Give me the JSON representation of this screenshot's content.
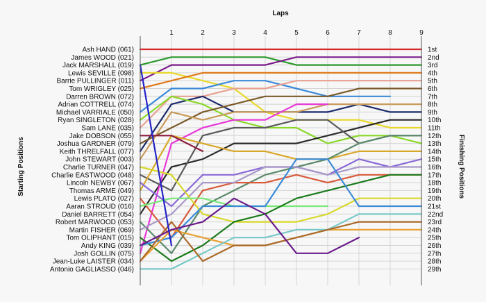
{
  "chart_data": {
    "type": "line",
    "title": "",
    "xlabel": "Laps",
    "ylabel_left": "Starting Positions",
    "ylabel_right": "Finishing Positions",
    "x": [
      0,
      1,
      2,
      3,
      4,
      5,
      6,
      7,
      8,
      9
    ],
    "x_tick_labels": [
      "1",
      "2",
      "3",
      "4",
      "5",
      "6",
      "7",
      "8",
      "9"
    ],
    "ylim": [
      1,
      29
    ],
    "y_direction": "inverted",
    "grid": true,
    "starting_labels": [
      "Ash HAND (061)",
      "James WOOD (021)",
      "Jack MARSHALL (019)",
      "Lewis SEVILLE (098)",
      "Barrie PULLINGER (011)",
      "Tom WRIGLEY (025)",
      "Darren BROWN (072)",
      "Adrian COTTRELL (074)",
      "Michael VARRIALE (050)",
      "Ryan SINGLETON (028)",
      "Sam LANE (035)",
      "Jake DOBSON (055)",
      "Joshua GARDNER (079)",
      "Keith THRELFALL (077)",
      "John STEWART (003)",
      "Charlie TURNER (047)",
      "Charlie EASTWOOD (048)",
      "Lincoln NEWBY (067)",
      "Thomas ARME (049)",
      "Lewis PLATO (027)",
      "Aaran STROUD (016)",
      "Daniel BARRETT (054)",
      "Robert MARWOOD (053)",
      "Martin FISHER (069)",
      "Tom OLIPHANT (015)",
      "Andy KING (039)",
      "Josh GOLLIN (075)",
      "Jean-Luke LAISTER (034)",
      "Antonio GAGLIASSO (046)"
    ],
    "finishing_labels": [
      "1st",
      "2nd",
      "3rd",
      "4th",
      "5th",
      "6th",
      "7th",
      "8th",
      "9th",
      "10th",
      "11th",
      "12th",
      "13th",
      "14th",
      "15th",
      "16th",
      "17th",
      "18th",
      "19th",
      "20th",
      "21st",
      "22nd",
      "23rd",
      "24th",
      "25th",
      "26th",
      "27th",
      "28th",
      "29th"
    ],
    "series": [
      {
        "color": "#d42a2a",
        "values": [
          1,
          1,
          1,
          1,
          1,
          1,
          1,
          1,
          1,
          1
        ]
      },
      {
        "color": "#2a9a2a",
        "values": [
          3,
          2,
          2,
          2,
          2,
          3,
          3,
          3,
          3,
          3
        ]
      },
      {
        "color": "#7a1a8a",
        "values": [
          5,
          3,
          3,
          3,
          3,
          2,
          2,
          2,
          2,
          2
        ]
      },
      {
        "color": "#e8d82a",
        "values": [
          4,
          4,
          5,
          6,
          9,
          10,
          10,
          10,
          11,
          11
        ]
      },
      {
        "color": "#e07a1a",
        "values": [
          6,
          5,
          4,
          4,
          4,
          4,
          4,
          4,
          4,
          4
        ]
      },
      {
        "color": "#3a8ad8",
        "values": [
          9,
          6,
          6,
          5,
          5,
          6,
          7,
          7,
          7,
          null
        ]
      },
      {
        "color": "#e8a090",
        "values": [
          11,
          7,
          7,
          6,
          6,
          5,
          5,
          5,
          5,
          5
        ]
      },
      {
        "color": "#1a2a6a",
        "values": [
          14,
          8,
          7,
          9,
          9,
          9,
          9,
          8,
          9,
          9
        ]
      },
      {
        "color": "#8ad82a",
        "values": [
          10,
          7,
          8,
          10,
          11,
          11,
          13,
          12,
          12,
          13
        ]
      },
      {
        "color": "#7a5a2a",
        "values": [
          13,
          11,
          9,
          8,
          7,
          7,
          7,
          6,
          6,
          6
        ]
      },
      {
        "color": "#c89a5a",
        "values": [
          15,
          9,
          10,
          9,
          9,
          9,
          8,
          8,
          8,
          8
        ]
      },
      {
        "color": "#2a2a2a",
        "values": [
          22,
          16,
          15,
          13,
          13,
          13,
          12,
          11,
          10,
          10
        ]
      },
      {
        "color": "#e838d8",
        "values": [
          27,
          13,
          11,
          10,
          10,
          8,
          8,
          null,
          null,
          null
        ]
      },
      {
        "color": "#5a5a5a",
        "values": [
          17,
          19,
          12,
          11,
          11,
          10,
          10,
          13,
          12,
          12
        ]
      },
      {
        "color": "#d8a82a",
        "values": [
          19,
          12,
          13,
          14,
          14,
          15,
          15,
          14,
          14,
          14
        ]
      },
      {
        "color": "#8a6ad8",
        "values": [
          18,
          21,
          17,
          17,
          16,
          16,
          17,
          15,
          16,
          15
        ]
      },
      {
        "color": "#5a8a6a",
        "values": [
          23,
          27,
          21,
          19,
          17,
          16,
          15,
          13,
          12,
          12
        ]
      },
      {
        "color": "#d85a3a",
        "values": [
          20,
          25,
          19,
          18,
          18,
          17,
          18,
          17,
          17,
          17
        ]
      },
      {
        "color": "#a898c8",
        "values": [
          24,
          22,
          18,
          18,
          16,
          16,
          17,
          16,
          16,
          16
        ]
      },
      {
        "color": "#d8d82a",
        "values": [
          16,
          17,
          22,
          23,
          23,
          23,
          22,
          20,
          20,
          20
        ]
      },
      {
        "color": "#78e878",
        "values": [
          21,
          20,
          20,
          21,
          21,
          21,
          21,
          null,
          null,
          null
        ]
      },
      {
        "color": "#8a1a3a",
        "values": [
          12,
          12,
          14,
          null,
          null,
          null,
          null,
          null,
          null,
          null
        ]
      },
      {
        "color": "#1a7a1a",
        "values": [
          25,
          28,
          26,
          23,
          22,
          20,
          19,
          18,
          17,
          17
        ]
      },
      {
        "color": "#3a8ad8",
        "values": [
          26,
          25,
          21,
          21,
          21,
          15,
          15,
          21,
          21,
          21
        ]
      },
      {
        "color": "#e8a030",
        "values": [
          28,
          24,
          25,
          26,
          26,
          25,
          24,
          24,
          24,
          24
        ]
      },
      {
        "color": "#78c8c8",
        "values": [
          29,
          29,
          27,
          25,
          25,
          24,
          24,
          22,
          22,
          22
        ]
      },
      {
        "color": "#aa6a2a",
        "values": [
          28,
          23,
          28,
          26,
          26,
          25,
          24,
          23,
          23,
          23
        ]
      },
      {
        "color": "#6a1a8a",
        "values": [
          26,
          24,
          23,
          20,
          22,
          27,
          27,
          25,
          null,
          null
        ]
      },
      {
        "color": "#2424c8",
        "values": [
          3,
          26,
          null,
          null,
          null,
          null,
          null,
          null,
          null,
          null
        ]
      }
    ]
  }
}
